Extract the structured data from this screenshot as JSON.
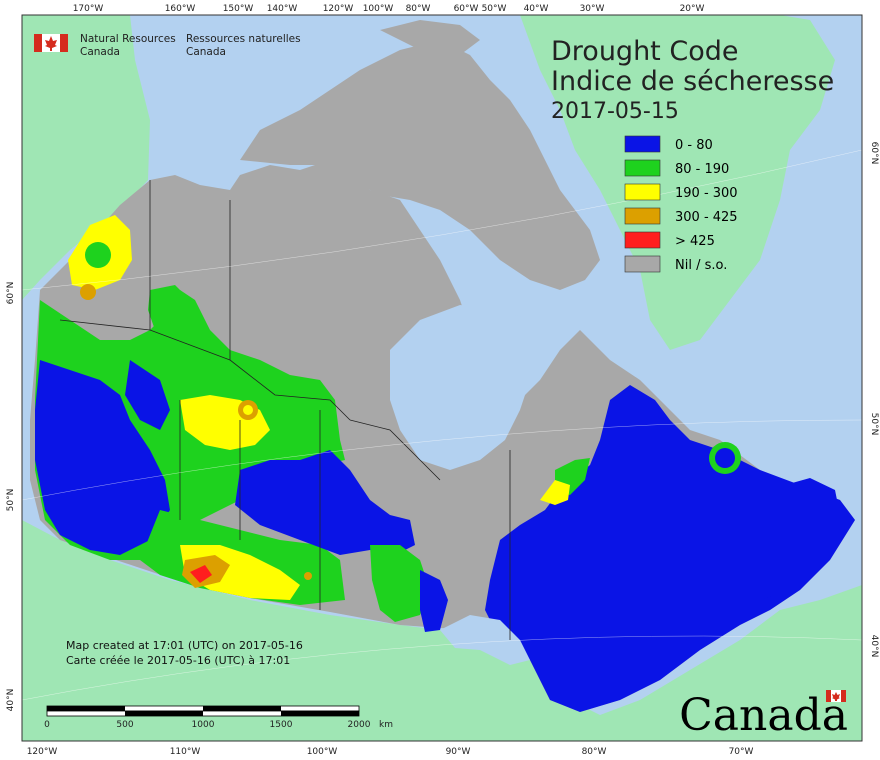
{
  "agency": {
    "en_line1": "Natural Resources",
    "en_line2": "Canada",
    "fr_line1": "Ressources naturelles",
    "fr_line2": "Canada"
  },
  "title": {
    "line1": "Drought Code",
    "line2": "Indice de sécheresse",
    "date": "2017-05-15"
  },
  "legend": [
    {
      "label": "0 - 80",
      "color": "#0a14e6"
    },
    {
      "label": "80 - 190",
      "color": "#1ed21e"
    },
    {
      "label": "190 - 300",
      "color": "#ffff00"
    },
    {
      "label": "300 - 425",
      "color": "#dca000"
    },
    {
      "label": "> 425",
      "color": "#ff1e1e"
    },
    {
      "label": "Nil / s.o.",
      "color": "#a8a8a8"
    }
  ],
  "colors": {
    "ocean": "#b3d1f0",
    "foreign_land": "#9fe6b4",
    "nil": "#a8a8a8",
    "low": "#0a14e6",
    "moderate": "#1ed21e",
    "high": "#ffff00",
    "very_high": "#dca000",
    "extreme": "#ff1e1e"
  },
  "top_ticks": [
    "170°W",
    "160°W",
    "150°W",
    "140°W",
    "120°W",
    "100°W",
    "80°W",
    "60°W",
    "50°W",
    "40°W",
    "30°W",
    "20°W"
  ],
  "bottom_ticks": [
    "120°W",
    "110°W",
    "100°W",
    "90°W",
    "80°W",
    "70°W"
  ],
  "left_ticks": [
    "60°N",
    "50°N",
    "40°N"
  ],
  "right_ticks": [
    "60°N",
    "50°N",
    "40°N"
  ],
  "credit": {
    "line1": "Map created at 17:01 (UTC) on 2017-05-16",
    "line2": "Carte créée le 2017-05-16 (UTC) à 17:01"
  },
  "scale_bar": {
    "labels": [
      "0",
      "500",
      "1000",
      "1500",
      "2000"
    ],
    "unit": "km"
  },
  "wordmark": "Canada"
}
